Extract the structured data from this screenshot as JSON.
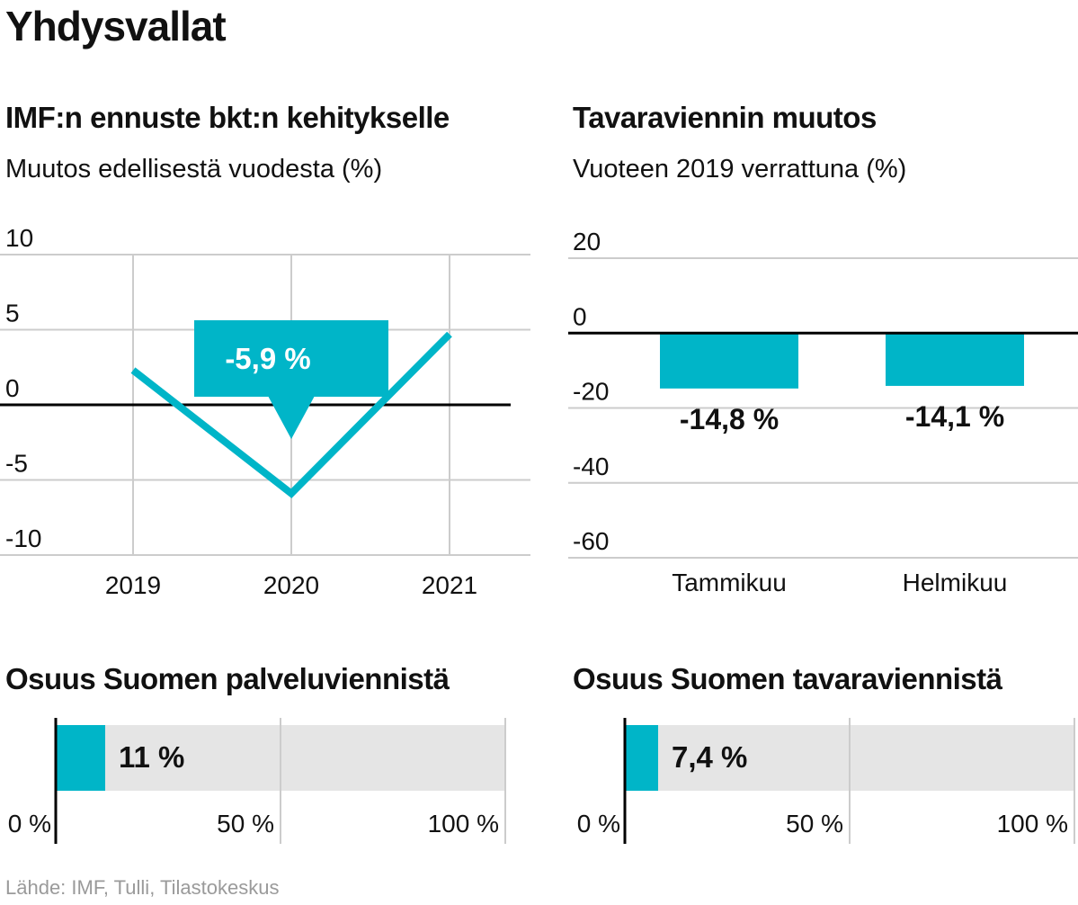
{
  "page": {
    "title": "Yhdysvallat",
    "source": "Lähde: IMF, Tulli, Tilastokeskus"
  },
  "colors": {
    "accent": "#00b5c8",
    "grid": "#cccccc",
    "axis": "#000000",
    "bar_bg": "#e5e5e5",
    "source_text": "#9a9a9a"
  },
  "chart_data": [
    {
      "type": "line",
      "title": "IMF:n ennuste bkt:n kehitykselle",
      "subtitle": "Muutos edellisestä vuodesta (%)",
      "x": [
        "2019",
        "2020",
        "2021"
      ],
      "values": [
        2.3,
        -5.9,
        4.7
      ],
      "ylim": [
        -10,
        10
      ],
      "yticks": [
        "10",
        "5",
        "0",
        "-5",
        "-10"
      ],
      "annotation": "-5,9 %",
      "grid": true
    },
    {
      "type": "bar",
      "title": "Tavaraviennin muutos",
      "subtitle": "Vuoteen 2019 verrattuna (%)",
      "categories": [
        "Tammikuu",
        "Helmikuu"
      ],
      "values": [
        -14.8,
        -14.1
      ],
      "value_labels": [
        "-14,8 %",
        "-14,1 %"
      ],
      "ylim": [
        -60,
        20
      ],
      "yticks": [
        "20",
        "0",
        "-20",
        "-40",
        "-60"
      ],
      "grid": true
    },
    {
      "type": "bar",
      "title": "Osuus Suomen palveluviennistä",
      "value": 11,
      "value_label": "11 %",
      "xlim": [
        0,
        100
      ],
      "xticks": [
        "0 %",
        "50 %",
        "100 %"
      ]
    },
    {
      "type": "bar",
      "title": "Osuus Suomen tavaraviennistä",
      "value": 7.4,
      "value_label": "7,4 %",
      "xlim": [
        0,
        100
      ],
      "xticks": [
        "0 %",
        "50 %",
        "100 %"
      ]
    }
  ]
}
